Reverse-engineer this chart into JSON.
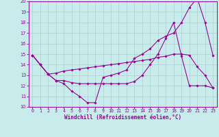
{
  "xlabel": "Windchill (Refroidissement éolien,°C)",
  "xlim": [
    -0.5,
    23.5
  ],
  "ylim": [
    10,
    20
  ],
  "yticks": [
    10,
    11,
    12,
    13,
    14,
    15,
    16,
    17,
    18,
    19,
    20
  ],
  "xticks": [
    0,
    1,
    2,
    3,
    4,
    5,
    6,
    7,
    8,
    9,
    10,
    11,
    12,
    13,
    14,
    15,
    16,
    17,
    18,
    19,
    20,
    21,
    22,
    23
  ],
  "bg_color": "#c8ecec",
  "grid_color": "#b0cccc",
  "line_color": "#990099",
  "line1_x": [
    0,
    1,
    2,
    3,
    4,
    5,
    6,
    7,
    8,
    9,
    10,
    11,
    12,
    13,
    14,
    15,
    16,
    17,
    18,
    19,
    20,
    21,
    22,
    23
  ],
  "line1_y": [
    14.9,
    14.0,
    13.1,
    12.5,
    12.2,
    11.5,
    11.0,
    10.4,
    10.4,
    12.8,
    13.0,
    13.2,
    13.5,
    14.6,
    15.0,
    15.5,
    16.3,
    16.7,
    17.0,
    18.0,
    19.4,
    20.3,
    18.0,
    14.9
  ],
  "line2_x": [
    0,
    1,
    2,
    3,
    4,
    5,
    6,
    7,
    8,
    9,
    10,
    11,
    12,
    13,
    14,
    15,
    16,
    17,
    18,
    19,
    20,
    21,
    22,
    23
  ],
  "line2_y": [
    14.9,
    14.0,
    13.1,
    12.5,
    12.5,
    12.3,
    12.2,
    12.2,
    12.2,
    12.2,
    12.2,
    12.2,
    12.2,
    12.4,
    13.0,
    14.0,
    15.0,
    16.5,
    18.0,
    14.8,
    12.0,
    12.0,
    12.0,
    11.8
  ],
  "line3_x": [
    0,
    1,
    2,
    3,
    4,
    5,
    6,
    7,
    8,
    9,
    10,
    11,
    12,
    13,
    14,
    15,
    16,
    17,
    18,
    19,
    20,
    21,
    22,
    23
  ],
  "line3_y": [
    14.9,
    14.0,
    13.1,
    13.2,
    13.4,
    13.5,
    13.6,
    13.7,
    13.8,
    13.9,
    14.0,
    14.1,
    14.2,
    14.3,
    14.4,
    14.5,
    14.7,
    14.8,
    15.0,
    15.0,
    14.9,
    13.8,
    13.0,
    11.8
  ],
  "xlabel_fontsize": 5.5,
  "tick_fontsize": 4.8
}
